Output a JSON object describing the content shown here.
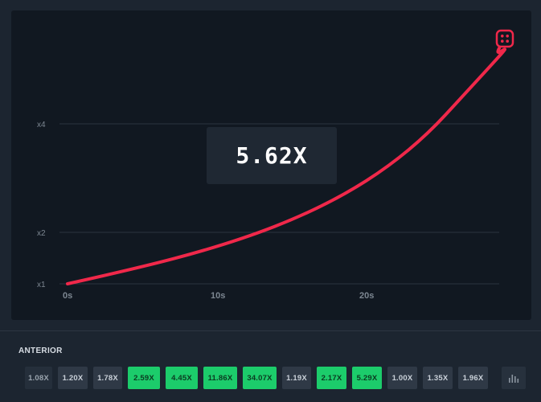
{
  "game": {
    "multiplier": "5.62X",
    "y_axis_labels": [
      "x1",
      "x2",
      "x4"
    ],
    "x_axis_labels": [
      "0s",
      "10s",
      "20s"
    ],
    "curve_color": "#f0284a"
  },
  "history": {
    "title": "ANTERIOR",
    "items": [
      {
        "label": "1.08X",
        "status": "first"
      },
      {
        "label": "1.20X",
        "status": "grey"
      },
      {
        "label": "1.78X",
        "status": "grey"
      },
      {
        "label": "2.59X",
        "status": "green"
      },
      {
        "label": "4.45X",
        "status": "green"
      },
      {
        "label": "11.86X",
        "status": "green"
      },
      {
        "label": "34.07X",
        "status": "green"
      },
      {
        "label": "1.19X",
        "status": "grey"
      },
      {
        "label": "2.17X",
        "status": "green"
      },
      {
        "label": "5.29X",
        "status": "green"
      },
      {
        "label": "1.00X",
        "status": "grey"
      },
      {
        "label": "1.35X",
        "status": "grey"
      },
      {
        "label": "1.96X",
        "status": "grey"
      }
    ],
    "stats_icon": "bar-chart-icon"
  }
}
